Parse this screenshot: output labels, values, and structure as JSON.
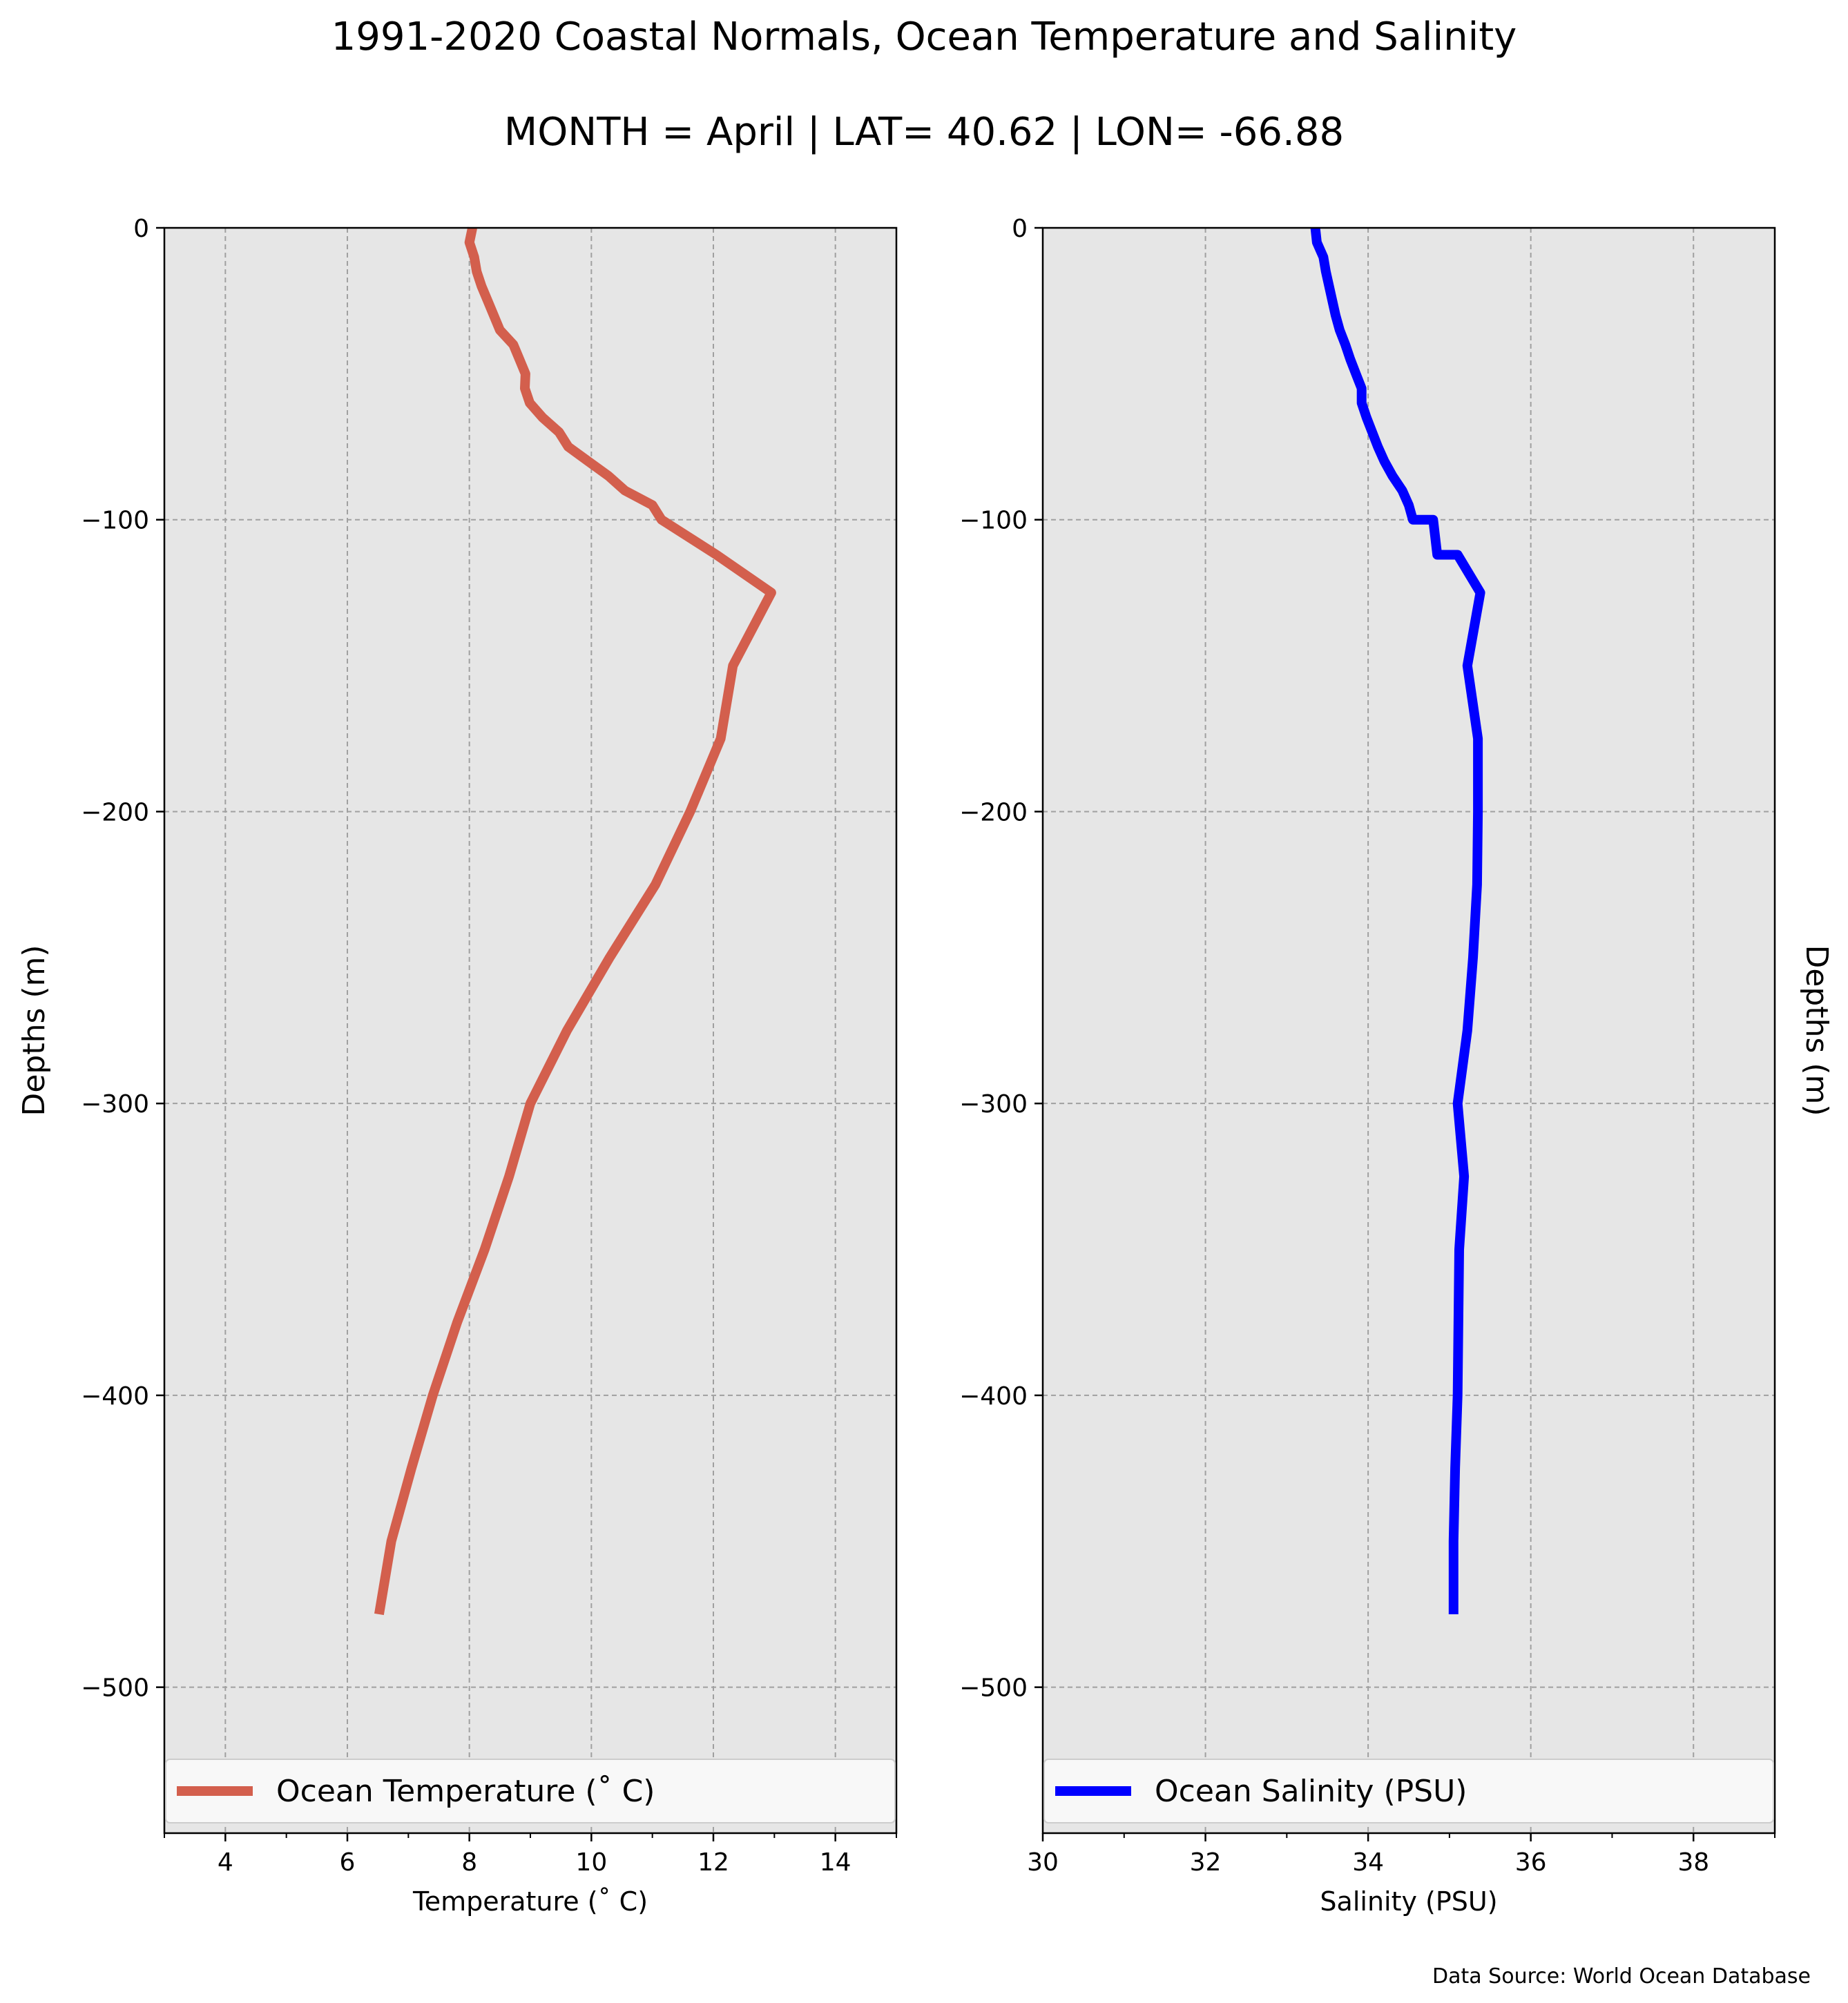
{
  "title": "1991-2020 Coastal Normals, Ocean Temperature and Salinity",
  "subtitle": "MONTH = April | LAT= 40.62 | LON= -66.88",
  "source": "Data Source: World Ocean Database",
  "colors": {
    "temperature": "#d35f4d",
    "salinity": "#0000ff",
    "plot_bg": "#e6e6e6",
    "grid": "#a0a0a0"
  },
  "chart_data": [
    {
      "type": "line",
      "xlabel": "Temperature ($^\\circ$C)",
      "ylabel": "Depths (m)",
      "xlim": [
        3,
        15
      ],
      "ylim": [
        -550,
        0
      ],
      "xticks": [
        4,
        6,
        8,
        10,
        12,
        14
      ],
      "xtick_labels": [
        "4",
        "6",
        "8",
        "10",
        "12",
        "14"
      ],
      "yticks": [
        0,
        -100,
        -200,
        -300,
        -400,
        -500
      ],
      "ytick_labels": [
        "0",
        "−100",
        "−200",
        "−300",
        "−400",
        "−500"
      ],
      "grid": true,
      "legend": "bottom",
      "series": [
        {
          "name": "Ocean Temperature ($^\\circ$C)",
          "legend_label": "Ocean Temperature (˚ C)",
          "x": [
            8.05,
            8.0,
            8.08,
            8.12,
            8.2,
            8.3,
            8.4,
            8.5,
            8.72,
            8.82,
            8.92,
            8.91,
            8.99,
            9.2,
            9.47,
            9.62,
            9.95,
            10.28,
            10.55,
            11.0,
            11.15,
            12.05,
            12.95,
            12.32,
            12.12,
            11.62,
            11.05,
            10.3,
            9.6,
            9.0,
            8.65,
            8.25,
            7.8,
            7.4,
            7.05,
            6.72,
            6.52
          ],
          "y": [
            0,
            -5,
            -10,
            -15,
            -20,
            -25,
            -30,
            -35,
            -40,
            -45,
            -50,
            -55,
            -60,
            -65,
            -70,
            -75,
            -80,
            -85,
            -90,
            -95,
            -100,
            -112,
            -125,
            -150,
            -175,
            -200,
            -225,
            -250,
            -275,
            -300,
            -325,
            -350,
            -375,
            -400,
            -425,
            -450,
            -475
          ]
        }
      ]
    },
    {
      "type": "line",
      "xlabel": "Salinity (PSU)",
      "ylabel": "Depths (m)",
      "xlim": [
        30,
        39
      ],
      "ylim": [
        -550,
        0
      ],
      "xticks": [
        30,
        32,
        34,
        36,
        38
      ],
      "xtick_labels": [
        "30",
        "32",
        "34",
        "36",
        "38"
      ],
      "yticks": [
        0,
        -100,
        -200,
        -300,
        -400,
        -500
      ],
      "ytick_labels": [
        "0",
        "−100",
        "−200",
        "−300",
        "−400",
        "−500"
      ],
      "grid": true,
      "legend": "bottom",
      "ylabel_side": "right",
      "series": [
        {
          "name": "Ocean Salinity (PSU)",
          "legend_label": "Ocean Salinity (PSU)",
          "x": [
            33.35,
            33.37,
            33.45,
            33.48,
            33.52,
            33.56,
            33.6,
            33.65,
            33.72,
            33.78,
            33.85,
            33.92,
            33.92,
            33.98,
            34.05,
            34.12,
            34.2,
            34.3,
            34.42,
            34.5,
            34.55,
            34.8,
            34.85,
            35.1,
            35.38,
            35.22,
            35.35,
            35.35,
            35.34,
            35.29,
            35.22,
            35.1,
            35.18,
            35.12,
            35.1,
            35.07,
            35.05,
            35.05
          ],
          "y": [
            0,
            -5,
            -10,
            -15,
            -20,
            -25,
            -30,
            -35,
            -40,
            -45,
            -50,
            -55,
            -60,
            -65,
            -70,
            -75,
            -80,
            -85,
            -90,
            -95,
            -100,
            -100,
            -112,
            -112,
            -125,
            -150,
            -175,
            -200,
            -225,
            -250,
            -275,
            -300,
            -325,
            -350,
            -400,
            -425,
            -450,
            -475
          ]
        }
      ]
    }
  ]
}
